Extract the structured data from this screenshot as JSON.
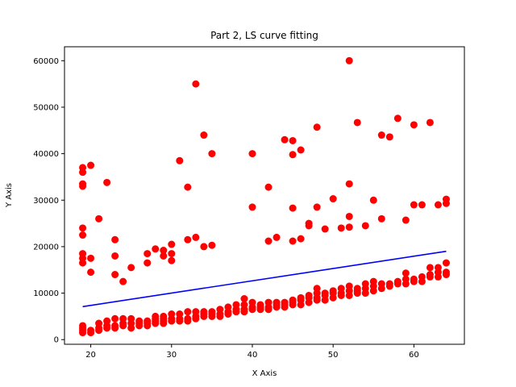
{
  "chart_data": {
    "type": "scatter",
    "title": "Part 2, LS curve fitting",
    "xlabel": "X Axis",
    "ylabel": "Y Axis",
    "xlim": [
      16.75,
      66.25
    ],
    "ylim": [
      -1000,
      63000
    ],
    "xticks": [
      20,
      30,
      40,
      50,
      60
    ],
    "yticks": [
      0,
      10000,
      20000,
      30000,
      40000,
      50000,
      60000
    ],
    "grid": false,
    "colors": {
      "points": "#ff0000",
      "fit_line": "#0000ff"
    },
    "series": [
      {
        "type": "scatter",
        "points": [
          [
            19,
            1500
          ],
          [
            19,
            2000
          ],
          [
            19,
            2500
          ],
          [
            19,
            3000
          ],
          [
            19,
            16500
          ],
          [
            19,
            17500
          ],
          [
            19,
            18500
          ],
          [
            19,
            22500
          ],
          [
            19,
            24000
          ],
          [
            19,
            33000
          ],
          [
            19,
            33500
          ],
          [
            19,
            36000
          ],
          [
            19,
            37000
          ],
          [
            20,
            1500
          ],
          [
            20,
            2000
          ],
          [
            20,
            14500
          ],
          [
            20,
            17500
          ],
          [
            20,
            37500
          ],
          [
            21,
            2000
          ],
          [
            21,
            2500
          ],
          [
            21,
            3500
          ],
          [
            21,
            26000
          ],
          [
            22,
            2500
          ],
          [
            22,
            3000
          ],
          [
            22,
            4000
          ],
          [
            22,
            33800
          ],
          [
            23,
            2500
          ],
          [
            23,
            3000
          ],
          [
            23,
            4500
          ],
          [
            23,
            14000
          ],
          [
            23,
            18000
          ],
          [
            23,
            21500
          ],
          [
            24,
            3000
          ],
          [
            24,
            3500
          ],
          [
            24,
            4500
          ],
          [
            24,
            12500
          ],
          [
            25,
            2500
          ],
          [
            25,
            3500
          ],
          [
            25,
            4500
          ],
          [
            25,
            15500
          ],
          [
            26,
            3000
          ],
          [
            26,
            3500
          ],
          [
            26,
            4000
          ],
          [
            27,
            3000
          ],
          [
            27,
            3500
          ],
          [
            27,
            4000
          ],
          [
            27,
            16500
          ],
          [
            27,
            18500
          ],
          [
            28,
            3500
          ],
          [
            28,
            4000
          ],
          [
            28,
            4500
          ],
          [
            28,
            5000
          ],
          [
            28,
            19500
          ],
          [
            29,
            3500
          ],
          [
            29,
            4000
          ],
          [
            29,
            4500
          ],
          [
            29,
            5000
          ],
          [
            29,
            18000
          ],
          [
            29,
            19200
          ],
          [
            30,
            4000
          ],
          [
            30,
            4500
          ],
          [
            30,
            5500
          ],
          [
            30,
            17000
          ],
          [
            30,
            18500
          ],
          [
            30,
            20500
          ],
          [
            31,
            4000
          ],
          [
            31,
            4500
          ],
          [
            31,
            5500
          ],
          [
            31,
            38500
          ],
          [
            32,
            4000
          ],
          [
            32,
            4500
          ],
          [
            32,
            6000
          ],
          [
            32,
            21500
          ],
          [
            32,
            32800
          ],
          [
            33,
            4500
          ],
          [
            33,
            5000
          ],
          [
            33,
            6000
          ],
          [
            33,
            22000
          ],
          [
            33,
            55000
          ],
          [
            34,
            5000
          ],
          [
            34,
            5500
          ],
          [
            34,
            6000
          ],
          [
            34,
            20000
          ],
          [
            34,
            44000
          ],
          [
            35,
            5000
          ],
          [
            35,
            5500
          ],
          [
            35,
            6000
          ],
          [
            35,
            20300
          ],
          [
            35,
            40000
          ],
          [
            36,
            5000
          ],
          [
            36,
            5500
          ],
          [
            36,
            6500
          ],
          [
            37,
            5500
          ],
          [
            37,
            6000
          ],
          [
            37,
            7000
          ],
          [
            38,
            6000
          ],
          [
            38,
            6500
          ],
          [
            38,
            7500
          ],
          [
            39,
            6000
          ],
          [
            39,
            6500
          ],
          [
            39,
            7500
          ],
          [
            39,
            8800
          ],
          [
            40,
            6500
          ],
          [
            40,
            7000
          ],
          [
            40,
            8000
          ],
          [
            40,
            28500
          ],
          [
            40,
            40000
          ],
          [
            41,
            6500
          ],
          [
            41,
            7000
          ],
          [
            41,
            7500
          ],
          [
            42,
            6500
          ],
          [
            42,
            7000
          ],
          [
            42,
            8000
          ],
          [
            42,
            21200
          ],
          [
            42,
            32800
          ],
          [
            43,
            7000
          ],
          [
            43,
            7500
          ],
          [
            43,
            8000
          ],
          [
            43,
            22000
          ],
          [
            44,
            7000
          ],
          [
            44,
            7500
          ],
          [
            44,
            8000
          ],
          [
            44,
            43000
          ],
          [
            45,
            7500
          ],
          [
            45,
            8000
          ],
          [
            45,
            8500
          ],
          [
            45,
            21200
          ],
          [
            45,
            28300
          ],
          [
            45,
            39800
          ],
          [
            45,
            42800
          ],
          [
            46,
            7500
          ],
          [
            46,
            8500
          ],
          [
            46,
            9000
          ],
          [
            46,
            21700
          ],
          [
            46,
            40800
          ],
          [
            47,
            8000
          ],
          [
            47,
            9000
          ],
          [
            47,
            9500
          ],
          [
            47,
            24500
          ],
          [
            47,
            25000
          ],
          [
            48,
            8500
          ],
          [
            48,
            9000
          ],
          [
            48,
            10000
          ],
          [
            48,
            11000
          ],
          [
            48,
            28500
          ],
          [
            48,
            45700
          ],
          [
            49,
            8500
          ],
          [
            49,
            9500
          ],
          [
            49,
            10000
          ],
          [
            49,
            23800
          ],
          [
            50,
            9000
          ],
          [
            50,
            10000
          ],
          [
            50,
            10500
          ],
          [
            50,
            30300
          ],
          [
            51,
            9500
          ],
          [
            51,
            10000
          ],
          [
            51,
            11000
          ],
          [
            51,
            24000
          ],
          [
            52,
            9500
          ],
          [
            52,
            10500
          ],
          [
            52,
            11500
          ],
          [
            52,
            24200
          ],
          [
            52,
            26500
          ],
          [
            52,
            33500
          ],
          [
            52,
            60000
          ],
          [
            53,
            10000
          ],
          [
            53,
            10500
          ],
          [
            53,
            11000
          ],
          [
            53,
            46700
          ],
          [
            54,
            10000
          ],
          [
            54,
            11000
          ],
          [
            54,
            12000
          ],
          [
            54,
            24500
          ],
          [
            55,
            10500
          ],
          [
            55,
            11500
          ],
          [
            55,
            12500
          ],
          [
            55,
            30000
          ],
          [
            56,
            11000
          ],
          [
            56,
            12000
          ],
          [
            56,
            26000
          ],
          [
            56,
            44000
          ],
          [
            57,
            11500
          ],
          [
            57,
            12000
          ],
          [
            57,
            43600
          ],
          [
            58,
            12000
          ],
          [
            58,
            12500
          ],
          [
            58,
            47600
          ],
          [
            59,
            12000
          ],
          [
            59,
            13000
          ],
          [
            59,
            14300
          ],
          [
            59,
            25700
          ],
          [
            60,
            12500
          ],
          [
            60,
            13000
          ],
          [
            60,
            29000
          ],
          [
            60,
            46200
          ],
          [
            61,
            12500
          ],
          [
            61,
            13500
          ],
          [
            61,
            29000
          ],
          [
            62,
            13500
          ],
          [
            62,
            14000
          ],
          [
            62,
            15500
          ],
          [
            62,
            46700
          ],
          [
            63,
            13500
          ],
          [
            63,
            14500
          ],
          [
            63,
            15500
          ],
          [
            63,
            29000
          ],
          [
            64,
            14000
          ],
          [
            64,
            14500
          ],
          [
            64,
            16500
          ],
          [
            64,
            29300
          ],
          [
            64,
            30200
          ]
        ]
      },
      {
        "type": "line",
        "x": [
          19,
          64
        ],
        "y": [
          7100,
          19000
        ]
      }
    ]
  }
}
